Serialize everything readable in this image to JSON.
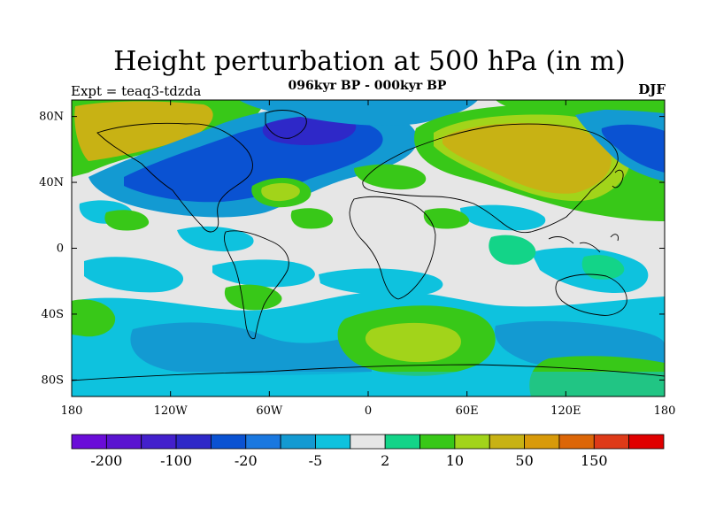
{
  "title": "Height perturbation at 500 hPa (in m)",
  "subtitle": "096kyr BP - 000kyr BP",
  "left_label": "Expt = teaq3-tdzda",
  "right_label": "DJF",
  "axes": {
    "lon_ticks": [
      {
        "value": -180,
        "label": "180"
      },
      {
        "value": -120,
        "label": "120W"
      },
      {
        "value": -60,
        "label": "60W"
      },
      {
        "value": 0,
        "label": "0"
      },
      {
        "value": 60,
        "label": "60E"
      },
      {
        "value": 120,
        "label": "120E"
      },
      {
        "value": 180,
        "label": "180"
      }
    ],
    "lat_ticks": [
      {
        "value": 80,
        "label": "80N"
      },
      {
        "value": 40,
        "label": "40N"
      },
      {
        "value": 0,
        "label": "0"
      },
      {
        "value": -40,
        "label": "40S"
      },
      {
        "value": -80,
        "label": "80S"
      }
    ],
    "lon_range": [
      -180,
      180
    ],
    "lat_range": [
      -90,
      90
    ]
  },
  "colorbar": {
    "colors": [
      "#6a0dd8",
      "#5a14d0",
      "#4320cc",
      "#2e28c8",
      "#0a52d2",
      "#1a78e0",
      "#139ad2",
      "#0ec2de",
      "#e6e6e6",
      "#13d488",
      "#38c818",
      "#a2d41a",
      "#c8b214",
      "#d89a0a",
      "#dc6608",
      "#de3a18",
      "#e00000"
    ],
    "labels": [
      {
        "boundary": 1,
        "text": "-200"
      },
      {
        "boundary": 3,
        "text": "-100"
      },
      {
        "boundary": 5,
        "text": "-20"
      },
      {
        "boundary": 7,
        "text": "-5"
      },
      {
        "boundary": 9,
        "text": "2"
      },
      {
        "boundary": 11,
        "text": "10"
      },
      {
        "boundary": 13,
        "text": "50"
      },
      {
        "boundary": 15,
        "text": "150"
      }
    ]
  }
}
